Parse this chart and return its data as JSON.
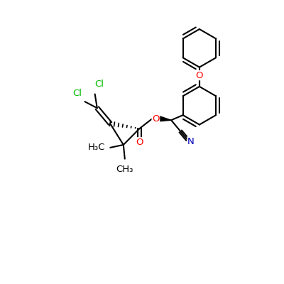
{
  "background_color": "#ffffff",
  "bond_color": "#000000",
  "cl_color": "#00bb00",
  "o_color": "#ff0000",
  "n_color": "#0000bb",
  "line_width": 1.5,
  "font_size": 9.5,
  "figsize": [
    4.0,
    4.0
  ],
  "dpi": 100,
  "xlim": [
    0,
    10
  ],
  "ylim": [
    0,
    10
  ]
}
